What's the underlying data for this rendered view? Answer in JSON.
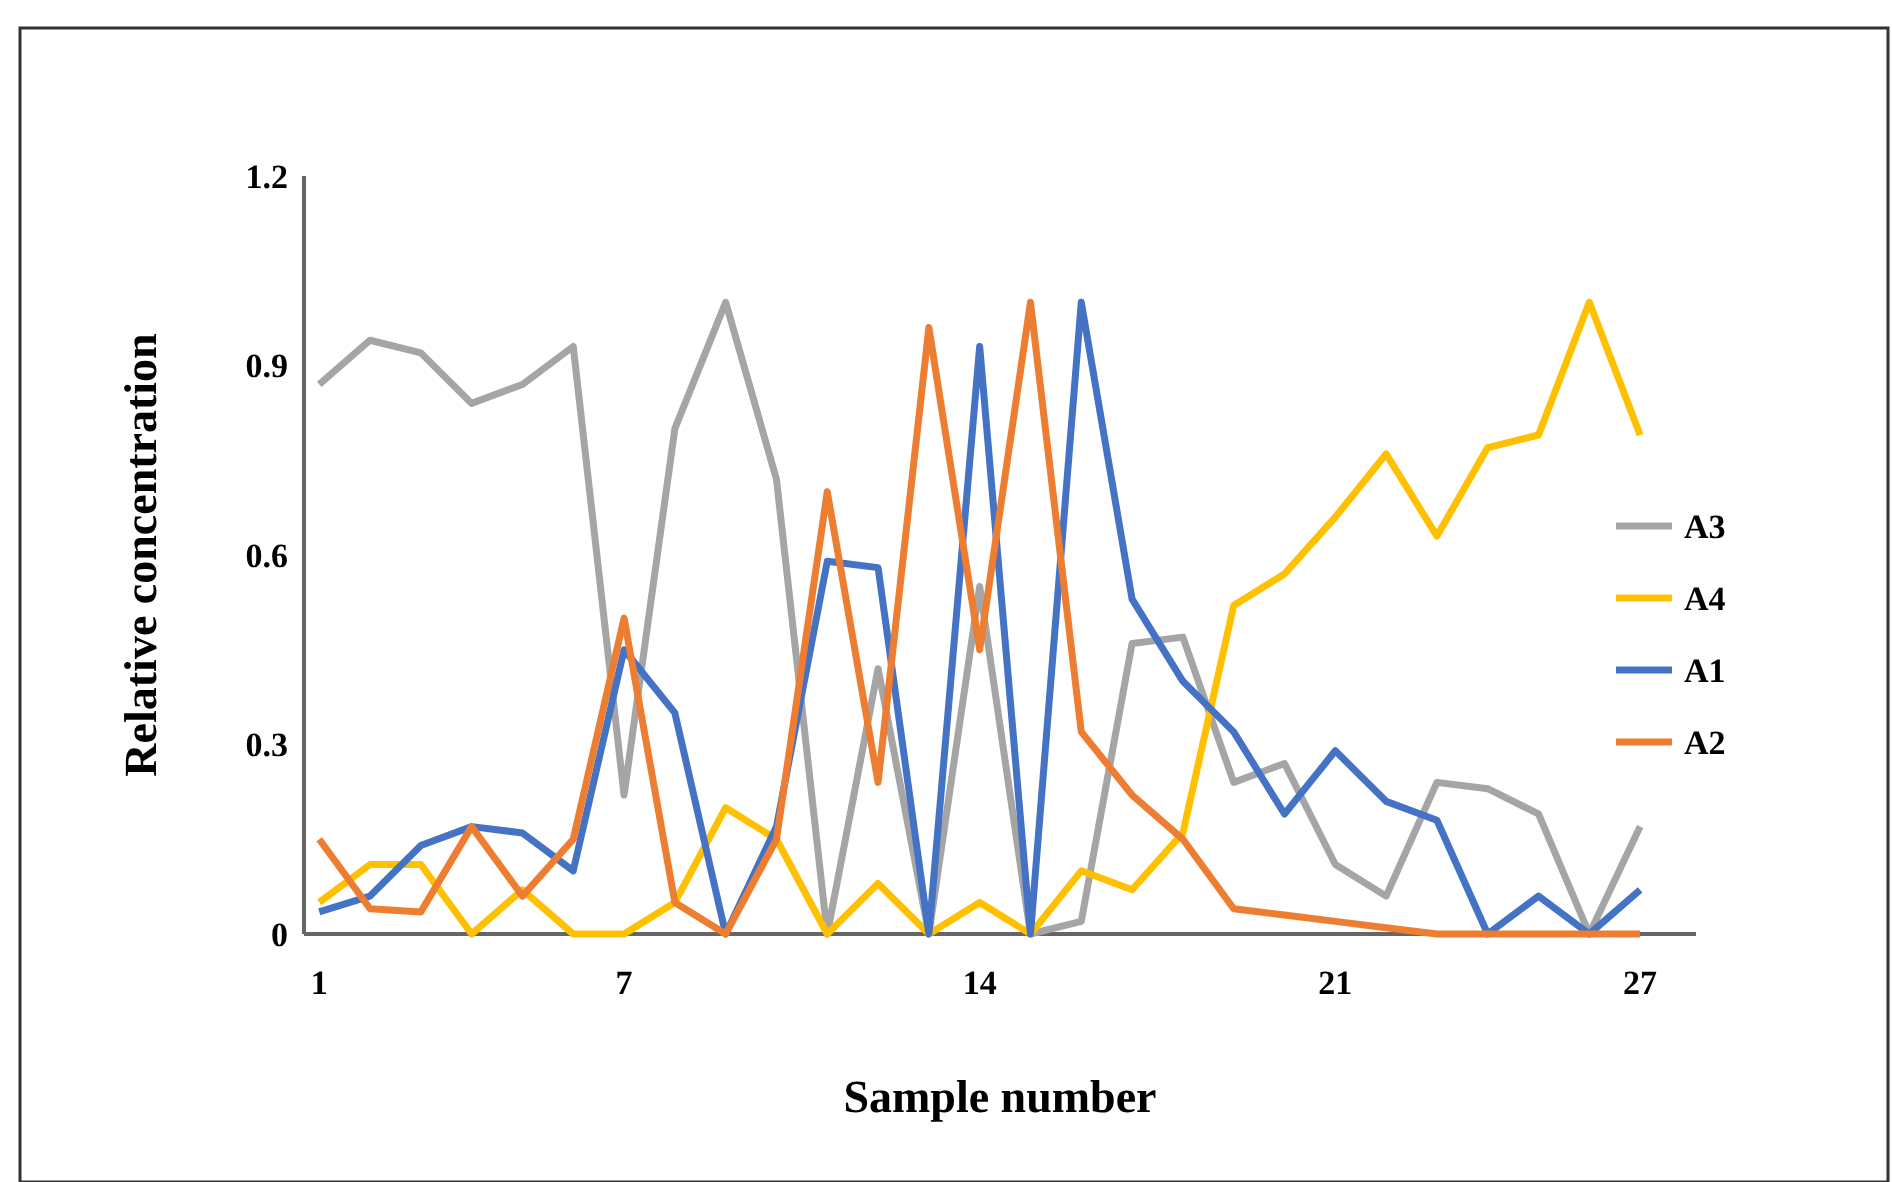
{
  "chart_data": {
    "type": "line",
    "xlabel": "Sample number",
    "ylabel": "Relative concentration",
    "x": [
      1,
      2,
      3,
      4,
      5,
      6,
      7,
      8,
      9,
      10,
      11,
      12,
      13,
      14,
      15,
      16,
      17,
      18,
      19,
      20,
      21,
      22,
      23,
      24,
      25,
      26,
      27
    ],
    "xlim": [
      0.7,
      28.1
    ],
    "xticks": [
      1,
      7,
      14,
      21,
      27
    ],
    "ylim": [
      0,
      1.2
    ],
    "yticks": [
      0,
      0.3,
      0.6,
      0.9,
      1.2
    ],
    "grid": false,
    "legend": "right",
    "marker": "none",
    "line_style": "solid",
    "series": [
      {
        "name": "A3",
        "color": "#a5a5a5",
        "values": [
          0.87,
          0.94,
          0.92,
          0.84,
          0.87,
          0.93,
          0.22,
          0.8,
          1.0,
          0.72,
          0,
          0.42,
          0,
          0.55,
          0,
          0.02,
          0.46,
          0.47,
          0.24,
          0.27,
          0.11,
          0.06,
          0.24,
          0.23,
          0.19,
          0,
          0.17
        ]
      },
      {
        "name": "A4",
        "color": "#ffc000",
        "values": [
          0.05,
          0.11,
          0.11,
          0,
          0.07,
          0,
          0,
          0.05,
          0.2,
          0.15,
          0,
          0.08,
          0,
          0.05,
          0,
          0.1,
          0.07,
          0.16,
          0.52,
          0.57,
          0.66,
          0.76,
          0.63,
          0.77,
          0.79,
          1.0,
          0.79
        ]
      },
      {
        "name": "A1",
        "color": "#4472c4",
        "values": [
          0.035,
          0.06,
          0.14,
          0.17,
          0.16,
          0.1,
          0.45,
          0.35,
          0,
          0.17,
          0.59,
          0.58,
          0,
          0.93,
          0,
          1.0,
          0.53,
          0.4,
          0.32,
          0.19,
          0.29,
          0.21,
          0.18,
          0,
          0.06,
          0,
          0.07
        ]
      },
      {
        "name": "A2",
        "color": "#ed7d31",
        "values": [
          0.15,
          0.04,
          0.035,
          0.17,
          0.06,
          0.15,
          0.5,
          0.05,
          0,
          0.15,
          0.7,
          0.24,
          0.96,
          0.45,
          1.0,
          0.32,
          0.22,
          0.15,
          0.04,
          0.03,
          0.02,
          0.01,
          0,
          0,
          0,
          0,
          0
        ]
      }
    ]
  }
}
